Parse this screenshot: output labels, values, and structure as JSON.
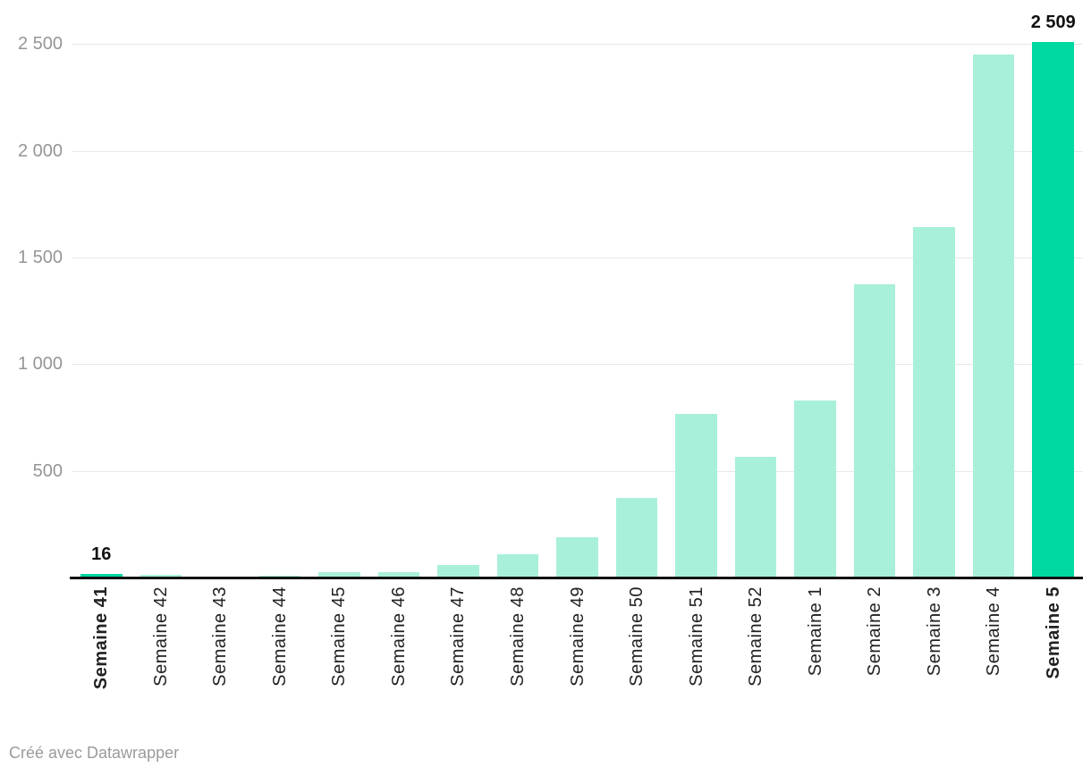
{
  "chart_data": {
    "type": "bar",
    "title": "",
    "categories": [
      "Semaine 41",
      "Semaine 42",
      "Semaine 43",
      "Semaine 44",
      "Semaine 45",
      "Semaine 46",
      "Semaine 47",
      "Semaine 48",
      "Semaine 49",
      "Semaine 50",
      "Semaine 51",
      "Semaine 52",
      "Semaine 1",
      "Semaine 2",
      "Semaine 3",
      "Semaine 4",
      "Semaine 5"
    ],
    "values": [
      16,
      12,
      6,
      9,
      25,
      24,
      57,
      108,
      188,
      374,
      767,
      565,
      831,
      1375,
      1644,
      2453,
      2509
    ],
    "xlabel": "",
    "ylabel": "",
    "ylim": [
      0,
      2500
    ],
    "yticks": [
      500,
      1000,
      1500,
      2000,
      2500
    ],
    "ytick_labels": [
      "500",
      "1 000",
      "1 500",
      "2 000",
      "2 500"
    ],
    "grid": true,
    "legend": "none",
    "highlight_indexes": [
      0,
      16
    ],
    "bold_category_indexes": [
      0,
      16
    ],
    "value_annotations": [
      {
        "index": 0,
        "label": "16"
      },
      {
        "index": 16,
        "label": "2 509"
      }
    ],
    "colors": {
      "bar": "#a8f0da",
      "highlight": "#00d8a2",
      "grid": "#e8e8e8",
      "axis_line": "#111111",
      "ytick_label": "#969696",
      "category_label": "#222222",
      "value_label": "#111111"
    }
  },
  "footer": {
    "credit_label": "Créé avec Datawrapper"
  }
}
